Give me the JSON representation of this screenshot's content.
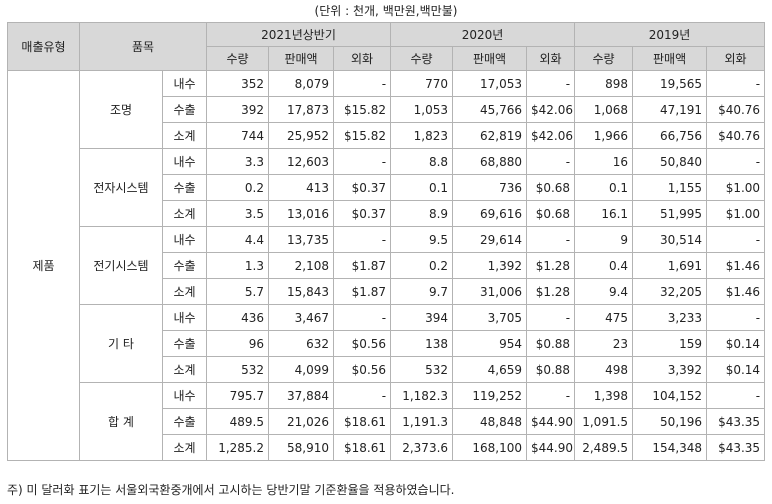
{
  "unit_note": "(단위 : 천개, 백만원,백만불)",
  "headers": {
    "sales_type": "매출유형",
    "item": "품목",
    "periods": [
      "2021년상반기",
      "2020년",
      "2019년"
    ],
    "sub": [
      "수량",
      "판매액",
      "외화"
    ]
  },
  "sales_type_value": "제품",
  "groups": [
    {
      "name": "조명",
      "rows": [
        {
          "type": "내수",
          "v": [
            "352",
            "8,079",
            "-",
            "770",
            "17,053",
            "-",
            "898",
            "19,565",
            "-"
          ]
        },
        {
          "type": "수출",
          "v": [
            "392",
            "17,873",
            "$15.82",
            "1,053",
            "45,766",
            "$42.06",
            "1,068",
            "47,191",
            "$40.76"
          ]
        },
        {
          "type": "소계",
          "v": [
            "744",
            "25,952",
            "$15.82",
            "1,823",
            "62,819",
            "$42.06",
            "1,966",
            "66,756",
            "$40.76"
          ]
        }
      ]
    },
    {
      "name": "전자시스템",
      "rows": [
        {
          "type": "내수",
          "v": [
            "3.3",
            "12,603",
            "-",
            "8.8",
            "68,880",
            "-",
            "16",
            "50,840",
            "-"
          ]
        },
        {
          "type": "수출",
          "v": [
            "0.2",
            "413",
            "$0.37",
            "0.1",
            "736",
            "$0.68",
            "0.1",
            "1,155",
            "$1.00"
          ]
        },
        {
          "type": "소계",
          "v": [
            "3.5",
            "13,016",
            "$0.37",
            "8.9",
            "69,616",
            "$0.68",
            "16.1",
            "51,995",
            "$1.00"
          ]
        }
      ]
    },
    {
      "name": "전기시스템",
      "rows": [
        {
          "type": "내수",
          "v": [
            "4.4",
            "13,735",
            "-",
            "9.5",
            "29,614",
            "-",
            "9",
            "30,514",
            "-"
          ]
        },
        {
          "type": "수출",
          "v": [
            "1.3",
            "2,108",
            "$1.87",
            "0.2",
            "1,392",
            "$1.28",
            "0.4",
            "1,691",
            "$1.46"
          ]
        },
        {
          "type": "소계",
          "v": [
            "5.7",
            "15,843",
            "$1.87",
            "9.7",
            "31,006",
            "$1.28",
            "9.4",
            "32,205",
            "$1.46"
          ]
        }
      ]
    },
    {
      "name": "기 타",
      "rows": [
        {
          "type": "내수",
          "v": [
            "436",
            "3,467",
            "-",
            "394",
            "3,705",
            "-",
            "475",
            "3,233",
            "-"
          ]
        },
        {
          "type": "수출",
          "v": [
            "96",
            "632",
            "$0.56",
            "138",
            "954",
            "$0.88",
            "23",
            "159",
            "$0.14"
          ]
        },
        {
          "type": "소계",
          "v": [
            "532",
            "4,099",
            "$0.56",
            "532",
            "4,659",
            "$0.88",
            "498",
            "3,392",
            "$0.14"
          ]
        }
      ]
    },
    {
      "name": "합 계",
      "rows": [
        {
          "type": "내수",
          "v": [
            "795.7",
            "37,884",
            "-",
            "1,182.3",
            "119,252",
            "-",
            "1,398",
            "104,152",
            "-"
          ]
        },
        {
          "type": "수출",
          "v": [
            "489.5",
            "21,026",
            "$18.61",
            "1,191.3",
            "48,848",
            "$44.90",
            "1,091.5",
            "50,196",
            "$43.35"
          ]
        },
        {
          "type": "소계",
          "v": [
            "1,285.2",
            "58,910",
            "$18.61",
            "2,373.6",
            "168,100",
            "$44.90",
            "2,489.5",
            "154,348",
            "$43.35"
          ]
        }
      ]
    }
  ],
  "footnote": "주) 미 달러화 표기는 서울외국환중개에서 고시하는 당반기말 기준환율을 적용하였습니다."
}
